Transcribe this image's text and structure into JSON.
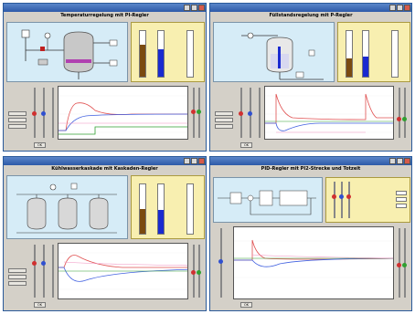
{
  "windows": [
    {
      "title": "Temperaturregelung mit PI-Regler",
      "ok": "OK"
    },
    {
      "title": "Füllstandsregelung mit P-Regler",
      "ok": "OK"
    },
    {
      "title": "Kühlwasserkaskade mit Kaskaden-Regler",
      "ok": "OK"
    },
    {
      "title": "PID-Regler mit PI2-Strecke und Totzeit",
      "ok": "OK"
    }
  ],
  "colors": {
    "titlebar": "#2d5aa8",
    "window": "#d4d0c8",
    "process_bg": "#d6ecf7",
    "gauge_bg": "#f8efb0",
    "brown_fill": "#7a4a10",
    "blue_fill": "#1a2ad0",
    "curve_red": "#e05050",
    "curve_blue": "#4060e0",
    "curve_green": "#30a030",
    "curve_pink": "#f090c0"
  }
}
